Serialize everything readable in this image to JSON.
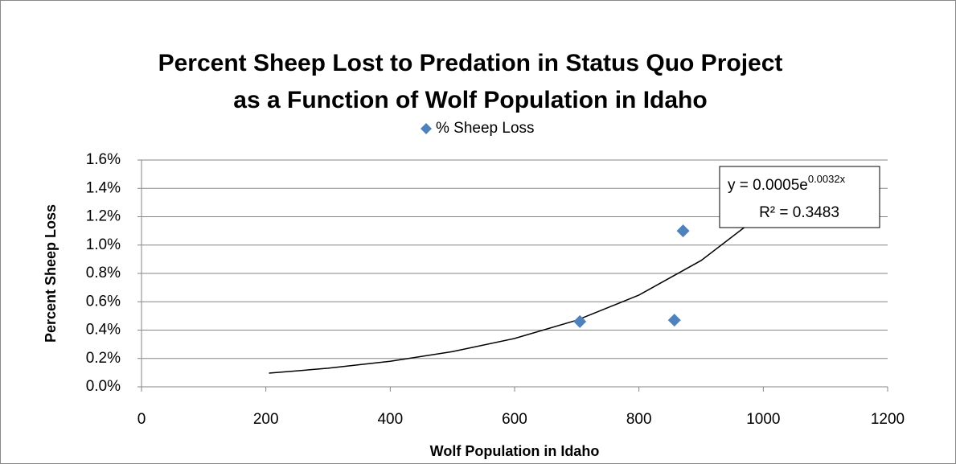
{
  "chart_data": {
    "type": "scatter",
    "title": [
      "Percent Sheep Lost to Predation in Status Quo Project",
      "as a Function of Wolf Population in Idaho"
    ],
    "x_label": "Wolf Population in Idaho",
    "y_label": "Percent Sheep Loss",
    "legend": "top",
    "grid": true,
    "series": [
      {
        "name": "% Sheep Loss",
        "color": "#4f81bd",
        "x": [
          705,
          857,
          871
        ],
        "values": [
          0.46,
          0.47,
          1.1
        ]
      }
    ],
    "trendline": {
      "equation": "y = 0.0005e",
      "exponent": "0.0032x",
      "r_squared": "R² = 0.3483",
      "color": "#000000",
      "x": [
        205,
        300,
        400,
        500,
        600,
        700,
        800,
        900,
        1000
      ],
      "values": [
        0.0964,
        0.131,
        0.18,
        0.248,
        0.341,
        0.47,
        0.647,
        0.891,
        1.227
      ]
    },
    "xlim": [
      0,
      1200
    ],
    "xticks": [
      0,
      200,
      400,
      600,
      800,
      1000,
      1200
    ],
    "ylim": [
      0,
      1.6
    ],
    "yticks": [
      {
        "value": 0,
        "label": "0.0%"
      },
      {
        "value": 0.2,
        "label": "0.2%"
      },
      {
        "value": 0.4,
        "label": "0.4%"
      },
      {
        "value": 0.6,
        "label": "0.6%"
      },
      {
        "value": 0.8,
        "label": "0.8%"
      },
      {
        "value": 1.0,
        "label": "1.0%"
      },
      {
        "value": 1.2,
        "label": "1.2%"
      },
      {
        "value": 1.4,
        "label": "1.4%"
      },
      {
        "value": 1.6,
        "label": "1.6%"
      }
    ]
  }
}
